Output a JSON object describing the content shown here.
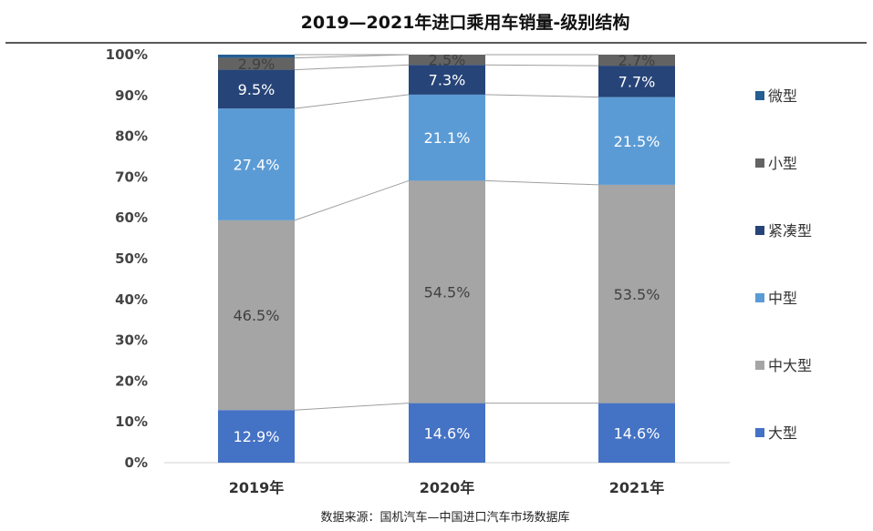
{
  "chart_data": {
    "type": "bar",
    "stacked": true,
    "title": "2019—2021年进口乘用车销量-级别结构",
    "categories": [
      "2019年",
      "2020年",
      "2021年"
    ],
    "y_ticks": [
      "0%",
      "10%",
      "20%",
      "30%",
      "40%",
      "50%",
      "60%",
      "70%",
      "80%",
      "90%",
      "100%"
    ],
    "ylim": [
      0,
      100
    ],
    "series": [
      {
        "name": "大型",
        "color": "#4472C4",
        "values": [
          12.9,
          14.6,
          14.6
        ],
        "labels": [
          "12.9%",
          "14.6%",
          "14.6%"
        ],
        "label_color": "#ffffff"
      },
      {
        "name": "中大型",
        "color": "#A5A5A5",
        "values": [
          46.5,
          54.5,
          53.5
        ],
        "labels": [
          "46.5%",
          "54.5%",
          "53.5%"
        ],
        "label_color": "#404040"
      },
      {
        "name": "中型",
        "color": "#5B9BD5",
        "values": [
          27.4,
          21.1,
          21.5
        ],
        "labels": [
          "27.4%",
          "21.1%",
          "21.5%"
        ],
        "label_color": "#ffffff"
      },
      {
        "name": "紧凑型",
        "color": "#264478",
        "values": [
          9.5,
          7.3,
          7.7
        ],
        "labels": [
          "9.5%",
          "7.3%",
          "7.7%"
        ],
        "label_color": "#ffffff"
      },
      {
        "name": "小型",
        "color": "#636363",
        "values": [
          2.9,
          2.5,
          2.7
        ],
        "labels": [
          "2.9%",
          "2.5%",
          "2.7%"
        ],
        "label_color": "#404040"
      },
      {
        "name": "微型",
        "color": "#255E91",
        "values": [
          0.8,
          0.0,
          0.0
        ],
        "labels": [
          "",
          "",
          ""
        ],
        "label_color": "#ffffff"
      }
    ],
    "legend_position": "right",
    "legend_order": [
      "微型",
      "小型",
      "紧凑型",
      "中型",
      "中大型",
      "大型"
    ],
    "source": "数据来源：国机汽车—中国进口汽车市场数据库"
  }
}
